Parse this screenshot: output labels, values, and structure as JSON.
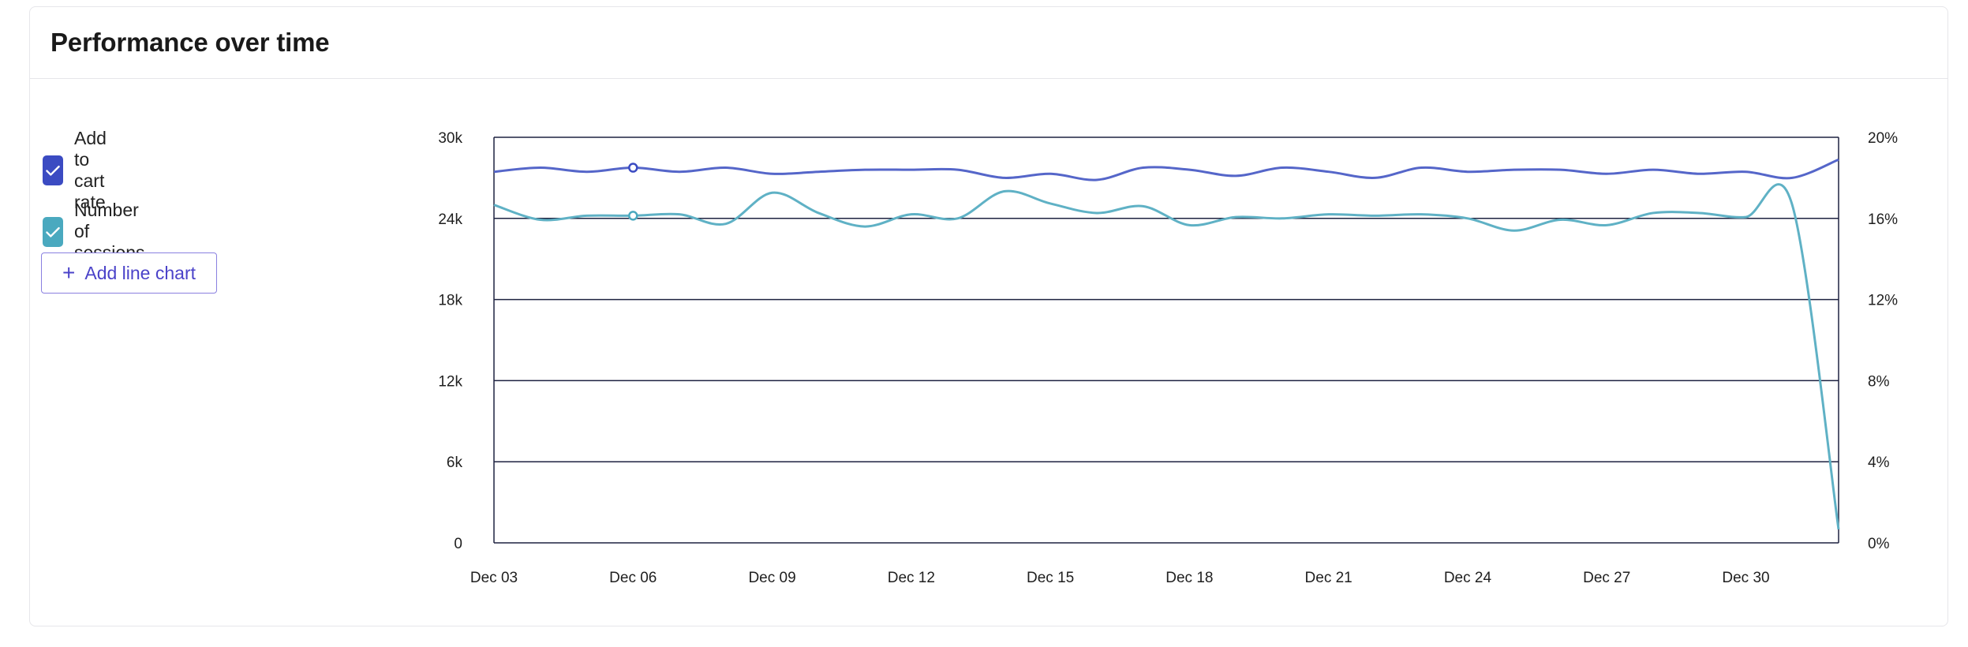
{
  "card": {
    "title": "Performance over time"
  },
  "legend": {
    "items": [
      {
        "label": "Add to cart rate",
        "checked": true,
        "color": "#3b4bc2"
      },
      {
        "label": "Number of sessions",
        "checked": true,
        "color": "#4aa9bf"
      }
    ],
    "add_button_label": "Add line chart",
    "add_button_icon": "plus-icon"
  },
  "chart_data": {
    "type": "line",
    "title": "",
    "x": [
      "Dec 03",
      "Dec 04",
      "Dec 05",
      "Dec 06",
      "Dec 07",
      "Dec 08",
      "Dec 09",
      "Dec 10",
      "Dec 11",
      "Dec 12",
      "Dec 13",
      "Dec 14",
      "Dec 15",
      "Dec 16",
      "Dec 17",
      "Dec 18",
      "Dec 19",
      "Dec 20",
      "Dec 21",
      "Dec 22",
      "Dec 23",
      "Dec 24",
      "Dec 25",
      "Dec 26",
      "Dec 27",
      "Dec 28",
      "Dec 29",
      "Dec 30",
      "Dec 31",
      "Jan 01"
    ],
    "x_tick_labels": [
      "Dec 03",
      "Dec 06",
      "Dec 09",
      "Dec 12",
      "Dec 15",
      "Dec 18",
      "Dec 21",
      "Dec 24",
      "Dec 27",
      "Dec 30"
    ],
    "y_left": {
      "ticks": [
        "0",
        "6k",
        "12k",
        "18k",
        "24k",
        "30k"
      ],
      "lim": [
        0,
        30000
      ]
    },
    "y_right": {
      "ticks": [
        "0%",
        "4%",
        "8%",
        "12%",
        "16%",
        "20%"
      ],
      "lim": [
        0,
        20
      ]
    },
    "grid": true,
    "series": [
      {
        "name": "Add to cart rate",
        "axis": "right",
        "unit": "%",
        "color": "#5566c9",
        "values": [
          18.3,
          18.5,
          18.3,
          18.5,
          18.3,
          18.5,
          18.2,
          18.3,
          18.4,
          18.4,
          18.4,
          18.0,
          18.2,
          17.9,
          18.5,
          18.4,
          18.1,
          18.5,
          18.3,
          18.0,
          18.5,
          18.3,
          18.4,
          18.4,
          18.2,
          18.4,
          18.2,
          18.3,
          18.0,
          18.9
        ]
      },
      {
        "name": "Number of sessions",
        "axis": "left",
        "unit": "",
        "color": "#5fb1c5",
        "values": [
          25000,
          23900,
          24200,
          24200,
          24300,
          23600,
          25900,
          24400,
          23400,
          24300,
          24000,
          26000,
          25100,
          24400,
          24900,
          23500,
          24100,
          24000,
          24300,
          24200,
          24300,
          24000,
          23100,
          23900,
          23500,
          24400,
          24400,
          24100,
          25000,
          1000
        ]
      }
    ],
    "highlight_index": 3
  }
}
